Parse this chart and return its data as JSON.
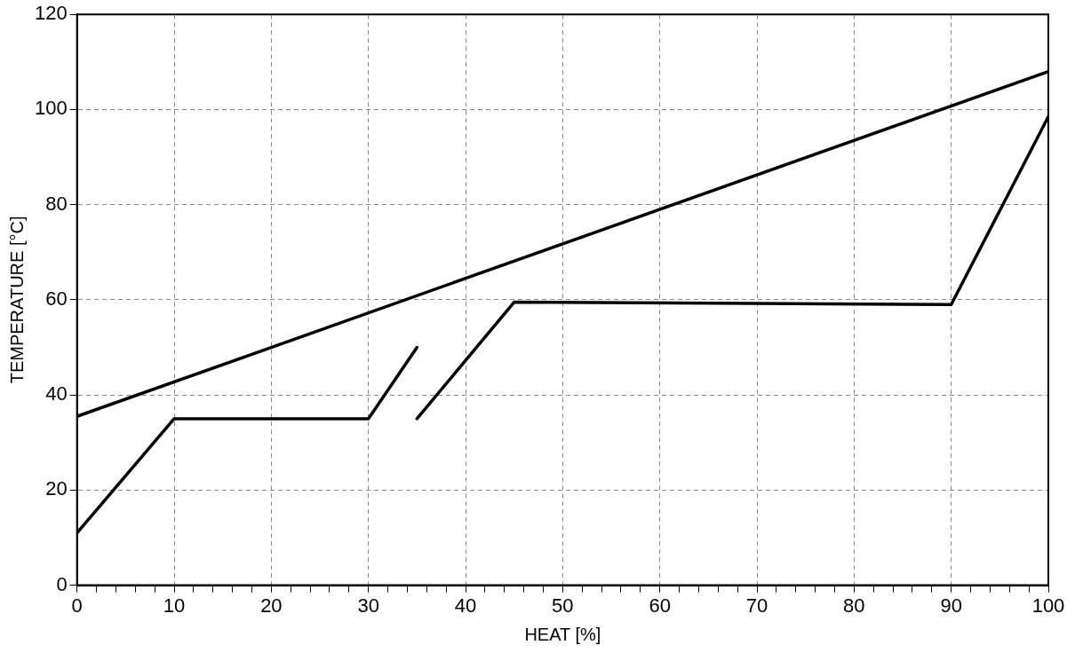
{
  "chart_data": {
    "type": "line",
    "xlabel": "HEAT [%]",
    "ylabel": "TEMPERATURE [°C]",
    "xlim": [
      0,
      100
    ],
    "ylim": [
      0,
      120
    ],
    "xticks": [
      0,
      {
        "value": 2,
        "label": null
      },
      {
        "value": 4,
        "label": null
      },
      {
        "value": 6,
        "label": null
      },
      {
        "value": 8,
        "label": null
      },
      10,
      {
        "value": 12,
        "label": null
      },
      {
        "value": 14,
        "label": null
      },
      {
        "value": 16,
        "label": null
      },
      {
        "value": 18,
        "label": null
      },
      20,
      {
        "value": 22,
        "label": null
      },
      {
        "value": 24,
        "label": null
      },
      {
        "value": 26,
        "label": null
      },
      {
        "value": 28,
        "label": null
      },
      30,
      {
        "value": 32,
        "label": null
      },
      {
        "value": 34,
        "label": null
      },
      {
        "value": 36,
        "label": null
      },
      {
        "value": 38,
        "label": null
      },
      40,
      {
        "value": 42,
        "label": null
      },
      {
        "value": 44,
        "label": null
      },
      {
        "value": 46,
        "label": null
      },
      {
        "value": 48,
        "label": null
      },
      50,
      {
        "value": 52,
        "label": null
      },
      {
        "value": 54,
        "label": null
      },
      {
        "value": 56,
        "label": null
      },
      {
        "value": 58,
        "label": null
      },
      60,
      {
        "value": 62,
        "label": null
      },
      {
        "value": 64,
        "label": null
      },
      {
        "value": 66,
        "label": null
      },
      {
        "value": 68,
        "label": null
      },
      70,
      {
        "value": 72,
        "label": null
      },
      {
        "value": 74,
        "label": null
      },
      {
        "value": 76,
        "label": null
      },
      {
        "value": 78,
        "label": null
      },
      80,
      {
        "value": 82,
        "label": null
      },
      {
        "value": 84,
        "label": null
      },
      {
        "value": 86,
        "label": null
      },
      {
        "value": 88,
        "label": null
      },
      90,
      {
        "value": 92,
        "label": null
      },
      {
        "value": 94,
        "label": null
      },
      {
        "value": 96,
        "label": null
      },
      {
        "value": 98,
        "label": null
      },
      100
    ],
    "yticks": [
      0,
      20,
      40,
      60,
      80,
      100,
      120
    ],
    "grid": true,
    "line_style": "solid",
    "marker": "none",
    "legend": false,
    "series": [
      {
        "color": "#000000",
        "x": [
          0,
          100
        ],
        "values": [
          35.5,
          108
        ]
      },
      {
        "color": "#000000",
        "x": [
          0,
          10,
          30,
          35
        ],
        "values": [
          11,
          35,
          35,
          50
        ]
      },
      {
        "color": "#000000",
        "x": [
          35,
          45,
          90,
          100
        ],
        "values": [
          35,
          59.5,
          59,
          98.5
        ]
      }
    ]
  }
}
